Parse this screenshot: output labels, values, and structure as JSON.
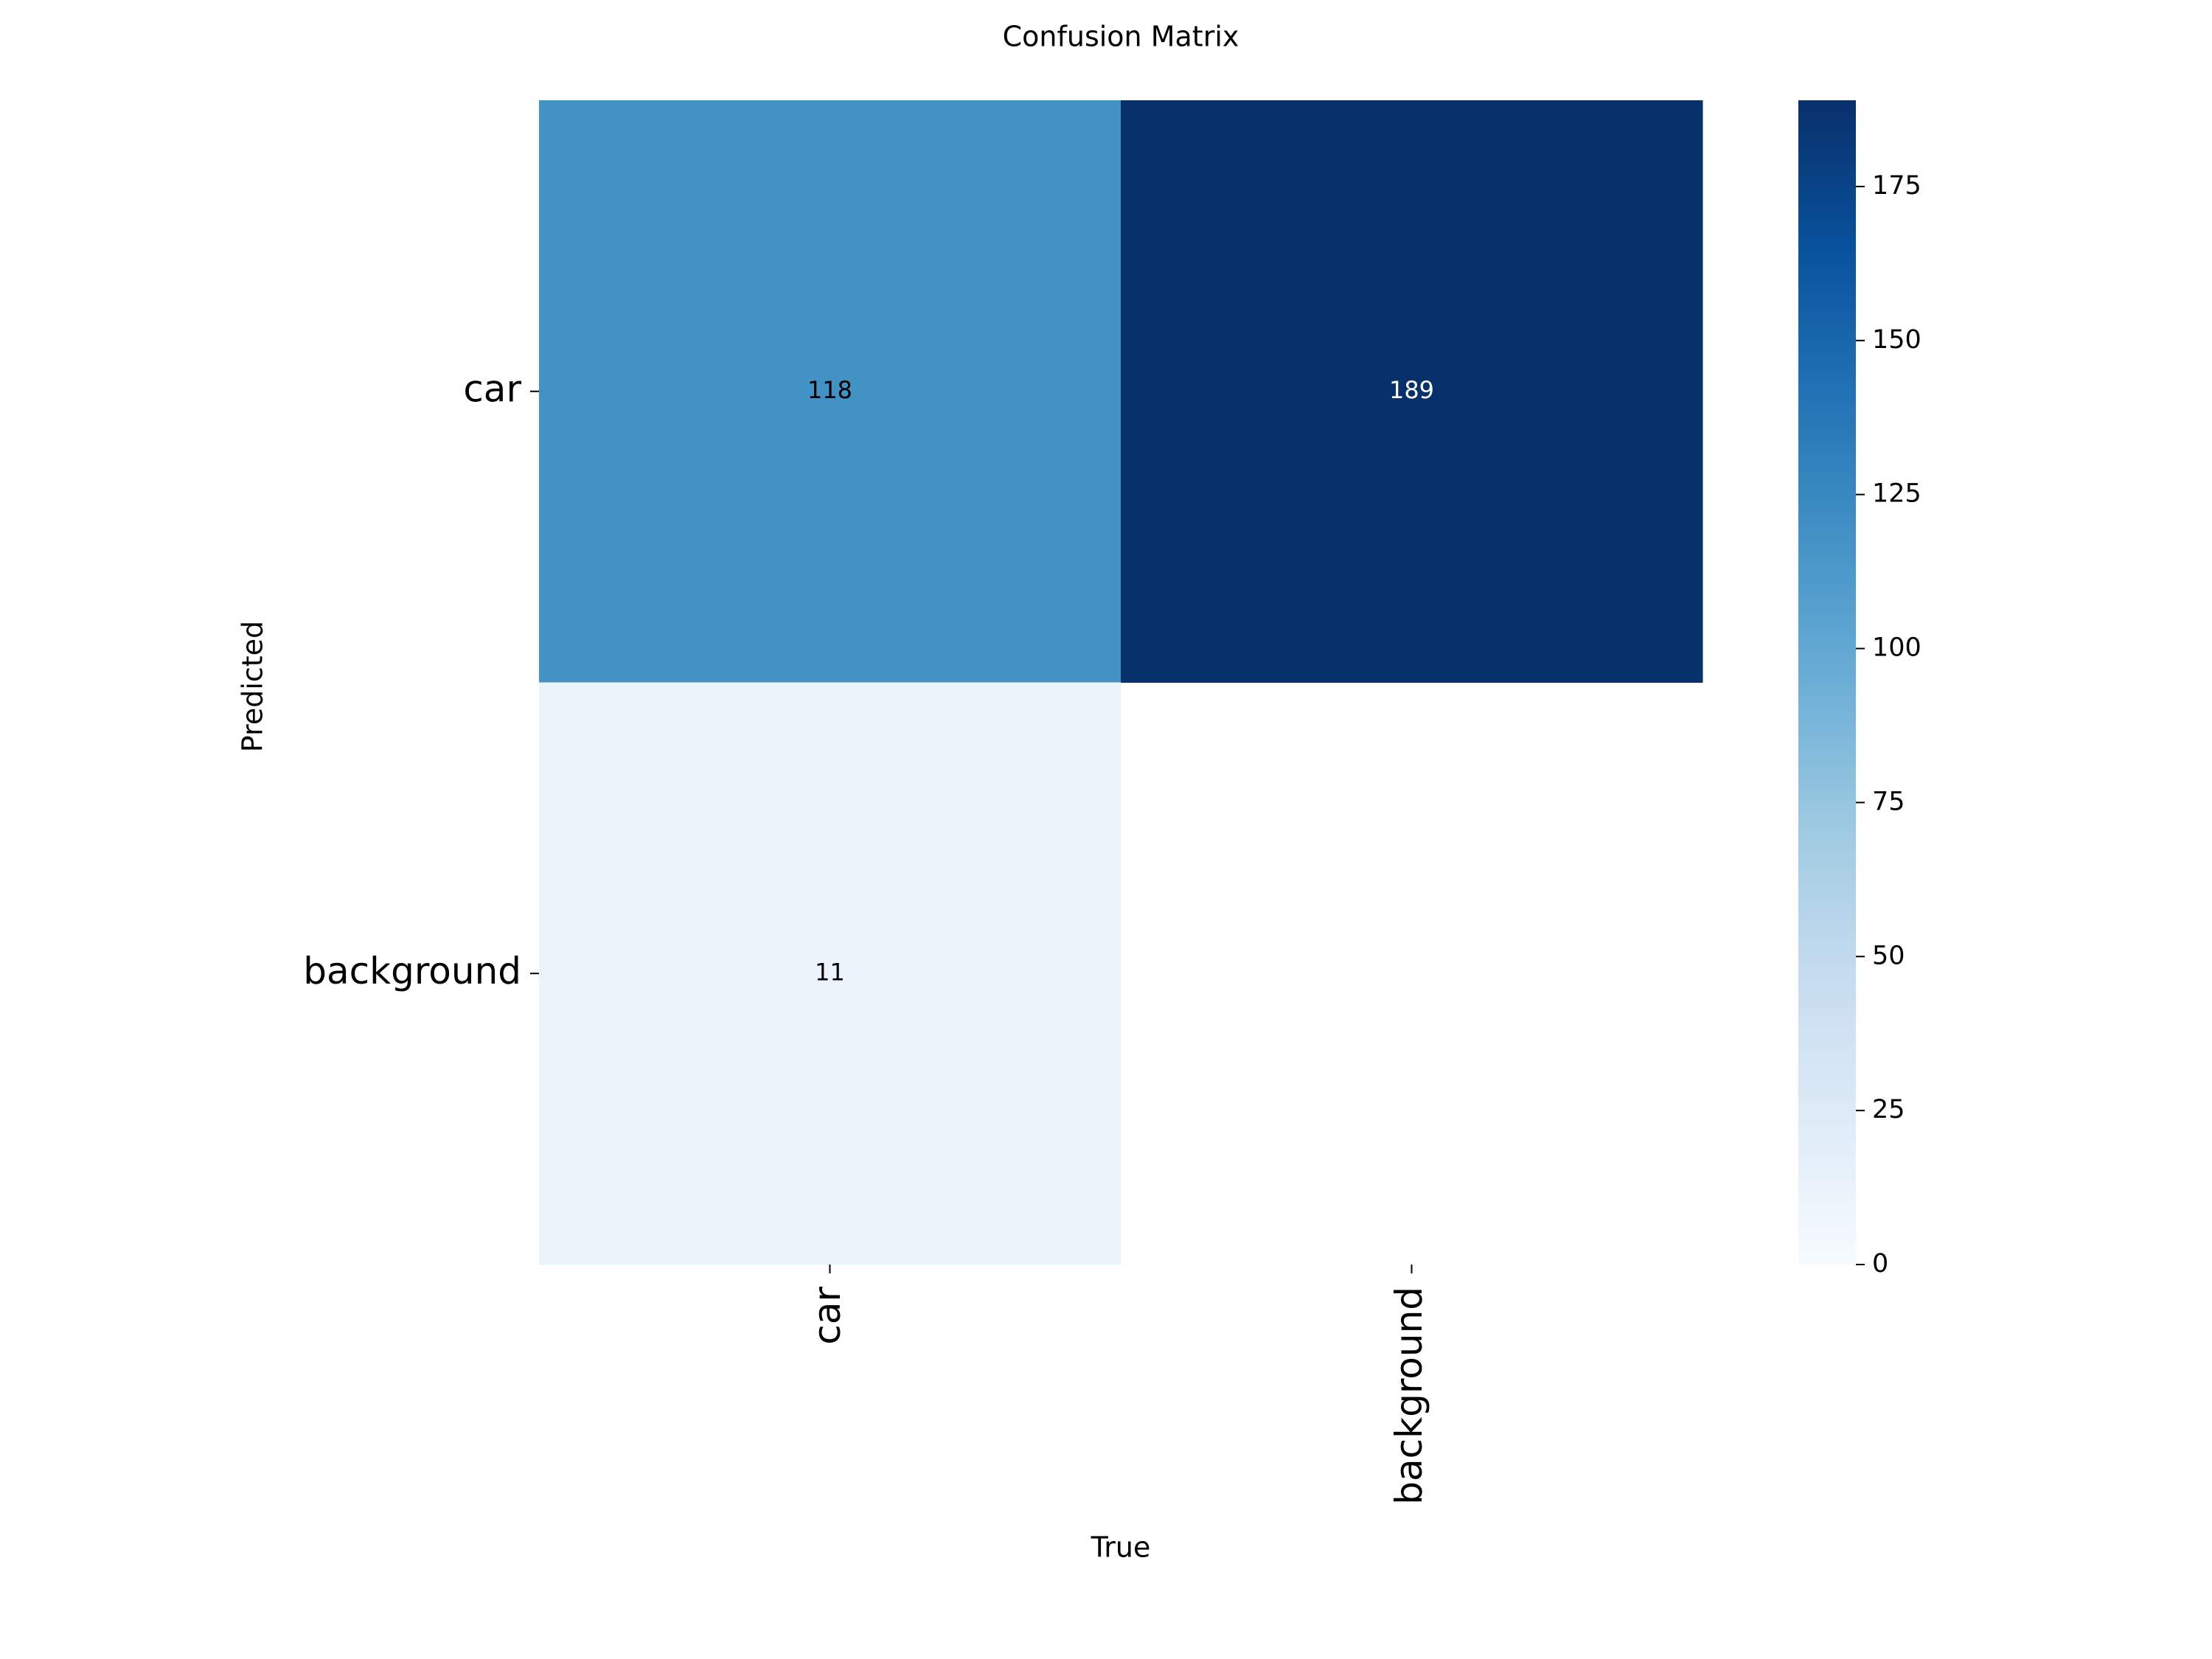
{
  "chart_data": {
    "type": "heatmap",
    "title": "Confusion Matrix",
    "xlabel": "True",
    "ylabel": "Predicted",
    "x_categories": [
      "car",
      "background"
    ],
    "y_categories": [
      "car",
      "background"
    ],
    "values": [
      [
        118,
        189
      ],
      [
        11,
        null
      ]
    ],
    "zlim": [
      0,
      189
    ],
    "zticks": [
      0,
      25,
      50,
      75,
      100,
      125,
      150,
      175
    ],
    "colorscale": [
      "#f7fbff",
      "#deebf7",
      "#c6dbef",
      "#9ecae1",
      "#6baed6",
      "#4292c6",
      "#2171b5",
      "#08519c",
      "#08306b"
    ]
  }
}
